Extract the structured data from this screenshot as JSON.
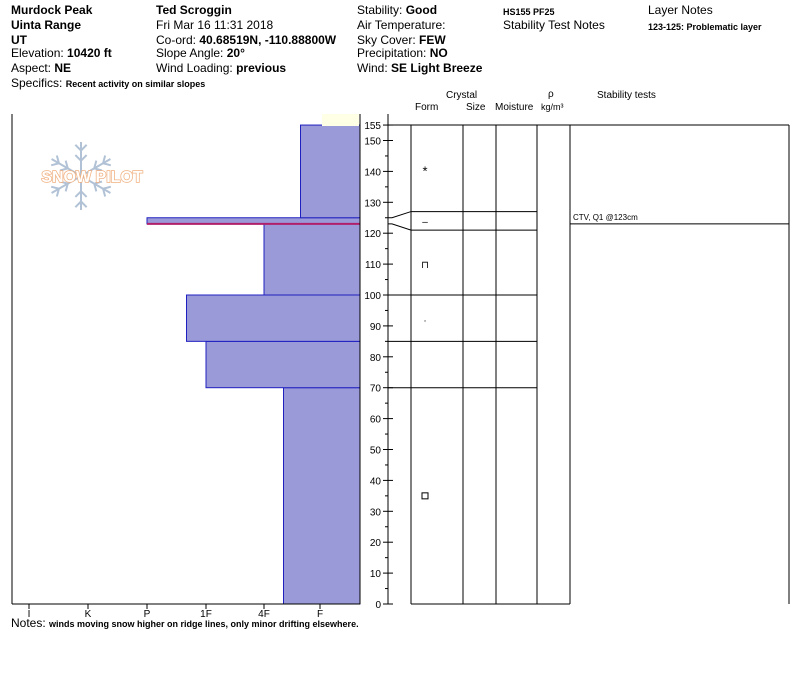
{
  "header": {
    "col1": {
      "location": "Murdock Peak",
      "range": "Uinta Range",
      "state": "UT",
      "elevation_label": "Elevation:",
      "elevation": "10420 ft",
      "aspect_label": "Aspect:",
      "aspect": "NE"
    },
    "col2": {
      "observer": "Ted Scroggin",
      "datetime": "Fri Mar 16 11:31 2018",
      "coord_label": "Co-ord:",
      "coord": "40.68519N, -110.88800W",
      "slope_label": "Slope Angle:",
      "slope": "20°",
      "wind_loading_label": "Wind Loading:",
      "wind_loading": "previous"
    },
    "col3": {
      "stability_label": "Stability:",
      "stability": "Good",
      "air_temp_label": "Air Temperature:",
      "air_temp": "",
      "sky_label": "Sky Cover:",
      "sky": "FEW",
      "precip_label": "Precipitation:",
      "precip": "NO",
      "wind_label": "Wind:",
      "wind": "SE Light Breeze"
    },
    "col4": {
      "hs": "HS155",
      "pf": "PF25",
      "stability_notes": "Stability Test Notes"
    },
    "col5": {
      "layer_notes_title": "Layer Notes",
      "layer_note": "123-125: Problematic layer"
    },
    "specifics_label": "Specifics:",
    "specifics": "Recent activity on similar slopes"
  },
  "logo": {
    "text": "SNOW PILOT"
  },
  "columns": {
    "crystal": "Crystal",
    "form": "Form",
    "size": "Size",
    "moisture": "Moisture",
    "rho": "ρ",
    "density_unit": "kg/m³",
    "stability_tests": "Stability tests"
  },
  "chart_data": {
    "type": "bar",
    "orientation": "horizontal",
    "x_categories": [
      "I",
      "K",
      "P",
      "1F",
      "4F",
      "F"
    ],
    "x_reversed": true,
    "y_ticks": [
      0,
      10,
      20,
      30,
      40,
      50,
      60,
      70,
      80,
      90,
      100,
      110,
      120,
      130,
      140,
      150,
      155
    ],
    "ylim": [
      0,
      155
    ],
    "layers": [
      {
        "bottom": 0,
        "top": 70,
        "hardness": "4F-"
      },
      {
        "bottom": 70,
        "top": 85,
        "hardness": "1F"
      },
      {
        "bottom": 85,
        "top": 100,
        "hardness": "1F+"
      },
      {
        "bottom": 100,
        "top": 123,
        "hardness": "4F"
      },
      {
        "bottom": 123,
        "top": 125,
        "hardness": "P"
      },
      {
        "bottom": 125,
        "top": 155,
        "hardness": "F+"
      }
    ],
    "grain_forms": [
      {
        "height": 140,
        "symbol": "*"
      },
      {
        "height": 124,
        "symbol": "–"
      },
      {
        "height": 110,
        "symbol": "⊓"
      },
      {
        "height": 92,
        "symbol": "·"
      },
      {
        "height": 35,
        "symbol": "□"
      }
    ],
    "stability_tests": [
      {
        "height": 123,
        "text": "CTV, Q1 @123cm"
      }
    ],
    "colors": {
      "fill": "#9a9ad8",
      "edge": "#2020c0",
      "weak_layer": "#b0206a"
    }
  },
  "footer": {
    "notes_label": "Notes:",
    "notes": "winds moving snow higher on ridge lines, only minor drifting elsewhere."
  }
}
